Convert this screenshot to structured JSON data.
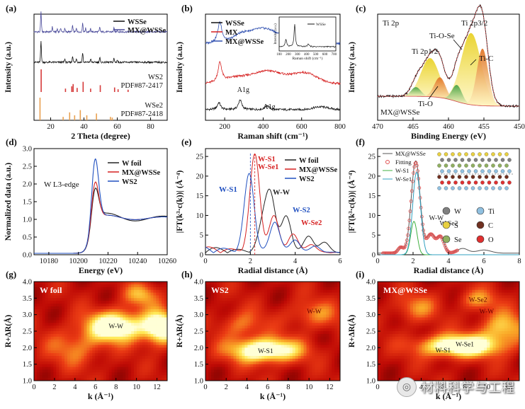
{
  "watermark": "材料科学与工程",
  "chart_data": [
    {
      "panel": "(a)",
      "type": "line",
      "xlabel": "2 Theta (degree)",
      "ylabel": "Intensity (a.u.)",
      "xlim": [
        10,
        90
      ],
      "xticks": [
        20,
        40,
        60,
        80
      ],
      "series": [
        {
          "name": "WSSe",
          "color": "#111111"
        },
        {
          "name": "MX@WSSe",
          "color": "#4a4a9a"
        }
      ],
      "references": [
        {
          "label": "WS2",
          "pdf": "PDF#87-2417",
          "color": "#d63a3a",
          "peaks": [
            [
              14.3,
              1.0
            ],
            [
              28.9,
              0.15
            ],
            [
              32.7,
              0.25
            ],
            [
              33.5,
              0.35
            ],
            [
              35.9,
              0.18
            ],
            [
              39.5,
              0.45
            ],
            [
              44.0,
              0.15
            ],
            [
              49.8,
              0.3
            ],
            [
              58.4,
              0.2
            ],
            [
              60.5,
              0.12
            ],
            [
              66.5,
              0.1
            ]
          ]
        },
        {
          "label": "WSe2",
          "pdf": "PDF#87-2418",
          "color": "#e8a050",
          "peaks": [
            [
              13.6,
              1.0
            ],
            [
              27.5,
              0.15
            ],
            [
              31.4,
              0.35
            ],
            [
              34.4,
              0.22
            ],
            [
              37.8,
              0.45
            ],
            [
              41.7,
              0.22
            ],
            [
              47.5,
              0.3
            ],
            [
              55.9,
              0.15
            ],
            [
              57.0,
              0.12
            ]
          ]
        }
      ]
    },
    {
      "panel": "(b)",
      "type": "line",
      "xlabel": "Raman shift (cm⁻¹)",
      "ylabel": "Intensity (a.u.)",
      "xlim": [
        100,
        800
      ],
      "xticks": [
        200,
        400,
        600,
        800
      ],
      "series": [
        {
          "name": "WSSe",
          "color": "#111111"
        },
        {
          "name": "MX",
          "color": "#d62020"
        },
        {
          "name": "MX@WSSe",
          "color": "#3050b0"
        }
      ],
      "annotations": [
        "A1g",
        "A1g"
      ],
      "inset": {
        "xlabel": "Raman shift (cm⁻¹)",
        "ylabel": "Intensity (a.u.)",
        "legend": "WSSe",
        "xticks": [
          100,
          200,
          300,
          400,
          500,
          600,
          700
        ]
      }
    },
    {
      "panel": "(c)",
      "type": "line",
      "xlabel": "Binding Energy (eV)",
      "ylabel": "Intensity (a.u.)",
      "xlim": [
        470,
        450
      ],
      "xticks": [
        470,
        465,
        460,
        455,
        450
      ],
      "annotations": [
        "Ti 2p",
        "Ti 2p1/2",
        "Ti 2p3/2",
        "Ti-O-Se",
        "Ti-C",
        "Ti-O",
        "MX@WSSe"
      ],
      "components": [
        {
          "name": "Ti 2p3/2 Ti-O-Se",
          "center": 456.8,
          "height": 0.78,
          "width": 1.4,
          "color": "#e8d020"
        },
        {
          "name": "Ti 2p3/2 Ti-C",
          "center": 455.2,
          "height": 0.62,
          "width": 0.8,
          "color": "#e07020"
        },
        {
          "name": "Ti 2p1/2 Ti-O-Se",
          "center": 462.6,
          "height": 0.42,
          "width": 1.3,
          "color": "#e8d020"
        },
        {
          "name": "Ti 2p1/2 Ti-C",
          "center": 461.2,
          "height": 0.22,
          "width": 0.8,
          "color": "#e07020"
        },
        {
          "name": "Ti-O 2p3/2",
          "center": 458.8,
          "height": 0.18,
          "width": 0.7,
          "color": "#40a040"
        },
        {
          "name": "Ti-O 2p1/2",
          "center": 464.6,
          "height": 0.1,
          "width": 0.7,
          "color": "#40a040"
        }
      ]
    },
    {
      "panel": "(d)",
      "type": "line",
      "xlabel": "Energy (eV)",
      "ylabel": "Normalized data (a.u.)",
      "xlim": [
        10170,
        10260
      ],
      "ylim": [
        0,
        3.0
      ],
      "xticks": [
        10180,
        10200,
        10220,
        10240,
        10260
      ],
      "yticks": [
        0.0,
        0.5,
        1.0,
        1.5,
        2.0,
        2.5,
        3.0
      ],
      "annotation": "W L3-edge",
      "series": [
        {
          "name": "W foil",
          "color": "#222222",
          "peak": 2.0
        },
        {
          "name": "MX@WSSe",
          "color": "#d62020",
          "peak": 2.2
        },
        {
          "name": "WS2",
          "color": "#2050c0",
          "peak": 2.92
        }
      ]
    },
    {
      "panel": "(e)",
      "type": "line",
      "xlabel": "Radial distance (Å)",
      "ylabel": "|FT(k³·c(k))| (Å⁻⁴)",
      "xlim": [
        0,
        6
      ],
      "ylim": [
        0,
        27
      ],
      "xticks": [
        0,
        2,
        4,
        6
      ],
      "yticks": [
        0,
        5,
        10,
        15,
        20,
        25
      ],
      "annotations": [
        "W-S1",
        "W-S1",
        "W-Se1",
        "W-W",
        "W-S2",
        "W-Se2"
      ],
      "series": [
        {
          "name": "W foil",
          "color": "#222222",
          "peaks": [
            [
              2.55,
              6
            ],
            [
              2.9,
              14
            ],
            [
              3.6,
              9
            ],
            [
              4.6,
              4
            ],
            [
              5.3,
              2.5
            ]
          ]
        },
        {
          "name": "MX@WSSe",
          "color": "#d62020",
          "peaks": [
            [
              2.2,
              24.5
            ],
            [
              3.05,
              9
            ],
            [
              3.9,
              4.5
            ],
            [
              4.7,
              2
            ]
          ]
        },
        {
          "name": "WS2",
          "color": "#2050c0",
          "peaks": [
            [
              1.95,
              19.5
            ],
            [
              3.1,
              7.5
            ],
            [
              4.0,
              3
            ],
            [
              4.9,
              1.5
            ]
          ]
        }
      ]
    },
    {
      "panel": "(f)",
      "type": "line",
      "xlabel": "Radial distance (Å)",
      "ylabel": "|FT(k³·c(k))| (Å⁻⁴)",
      "xlim": [
        0,
        8
      ],
      "ylim": [
        0,
        27
      ],
      "xticks": [
        0,
        2,
        4,
        6,
        8
      ],
      "yticks": [
        0,
        5,
        10,
        15,
        20,
        25
      ],
      "annotations": [
        "W-W",
        "W-Se2"
      ],
      "series": [
        {
          "name": "MX@WSSe",
          "color": "#555555"
        },
        {
          "name": "Fitting",
          "color": "#e05050"
        },
        {
          "name": "W-S1",
          "color": "#40b040",
          "peak": 8.5
        },
        {
          "name": "W-Se1",
          "color": "#30a0c0",
          "peak": 21
        }
      ],
      "element_legend": [
        {
          "name": "W",
          "color": "#808080"
        },
        {
          "name": "Ti",
          "color": "#90c0e0"
        },
        {
          "name": "S",
          "color": "#e8d040"
        },
        {
          "name": "C",
          "color": "#703020"
        },
        {
          "name": "Se",
          "color": "#90b060"
        },
        {
          "name": "O",
          "color": "#e03030"
        }
      ]
    },
    {
      "panel": "(g)",
      "type": "heatmap",
      "label": "W foil",
      "xlabel": "k (Å⁻¹)",
      "ylabel": "R+ΔR(Å)",
      "xlim": [
        0,
        13
      ],
      "ylim": [
        1.0,
        4.0
      ],
      "xticks": [
        0,
        2,
        4,
        6,
        8,
        10,
        12
      ],
      "yticks": [
        1.0,
        1.5,
        2.0,
        2.5,
        3.0,
        3.5,
        4.0
      ],
      "annotations": [
        {
          "text": "W-W",
          "k": 8.0,
          "R": 2.65
        }
      ]
    },
    {
      "panel": "(h)",
      "type": "heatmap",
      "label": "WS2",
      "xlabel": "k (Å⁻¹)",
      "ylabel": "R+ΔR(Å)",
      "xlim": [
        0,
        13
      ],
      "ylim": [
        1.0,
        4.0
      ],
      "xticks": [
        0,
        2,
        4,
        6,
        8,
        10,
        12
      ],
      "yticks": [
        1.0,
        1.5,
        2.0,
        2.5,
        3.0,
        3.5,
        4.0
      ],
      "annotations": [
        {
          "text": "W-S1",
          "k": 5.8,
          "R": 1.9
        },
        {
          "text": "W-W",
          "k": 10.5,
          "R": 3.1
        }
      ]
    },
    {
      "panel": "(i)",
      "type": "heatmap",
      "label": "MX@WSSe",
      "xlabel": "k (Å⁻¹)",
      "ylabel": "R+ΔR(Å)",
      "xlim": [
        0,
        13
      ],
      "ylim": [
        1.0,
        4.0
      ],
      "xticks": [
        0,
        2,
        4,
        6,
        8,
        10,
        12
      ],
      "yticks": [
        1.0,
        1.5,
        2.0,
        2.5,
        3.0,
        3.5,
        4.0
      ],
      "annotations": [
        {
          "text": "W-S1",
          "k": 6.0,
          "R": 1.92
        },
        {
          "text": "W-Se1",
          "k": 8.0,
          "R": 2.1
        },
        {
          "text": "W-Se2",
          "k": 9.2,
          "R": 3.45
        },
        {
          "text": "W-W",
          "k": 10.0,
          "R": 3.1
        }
      ]
    }
  ]
}
